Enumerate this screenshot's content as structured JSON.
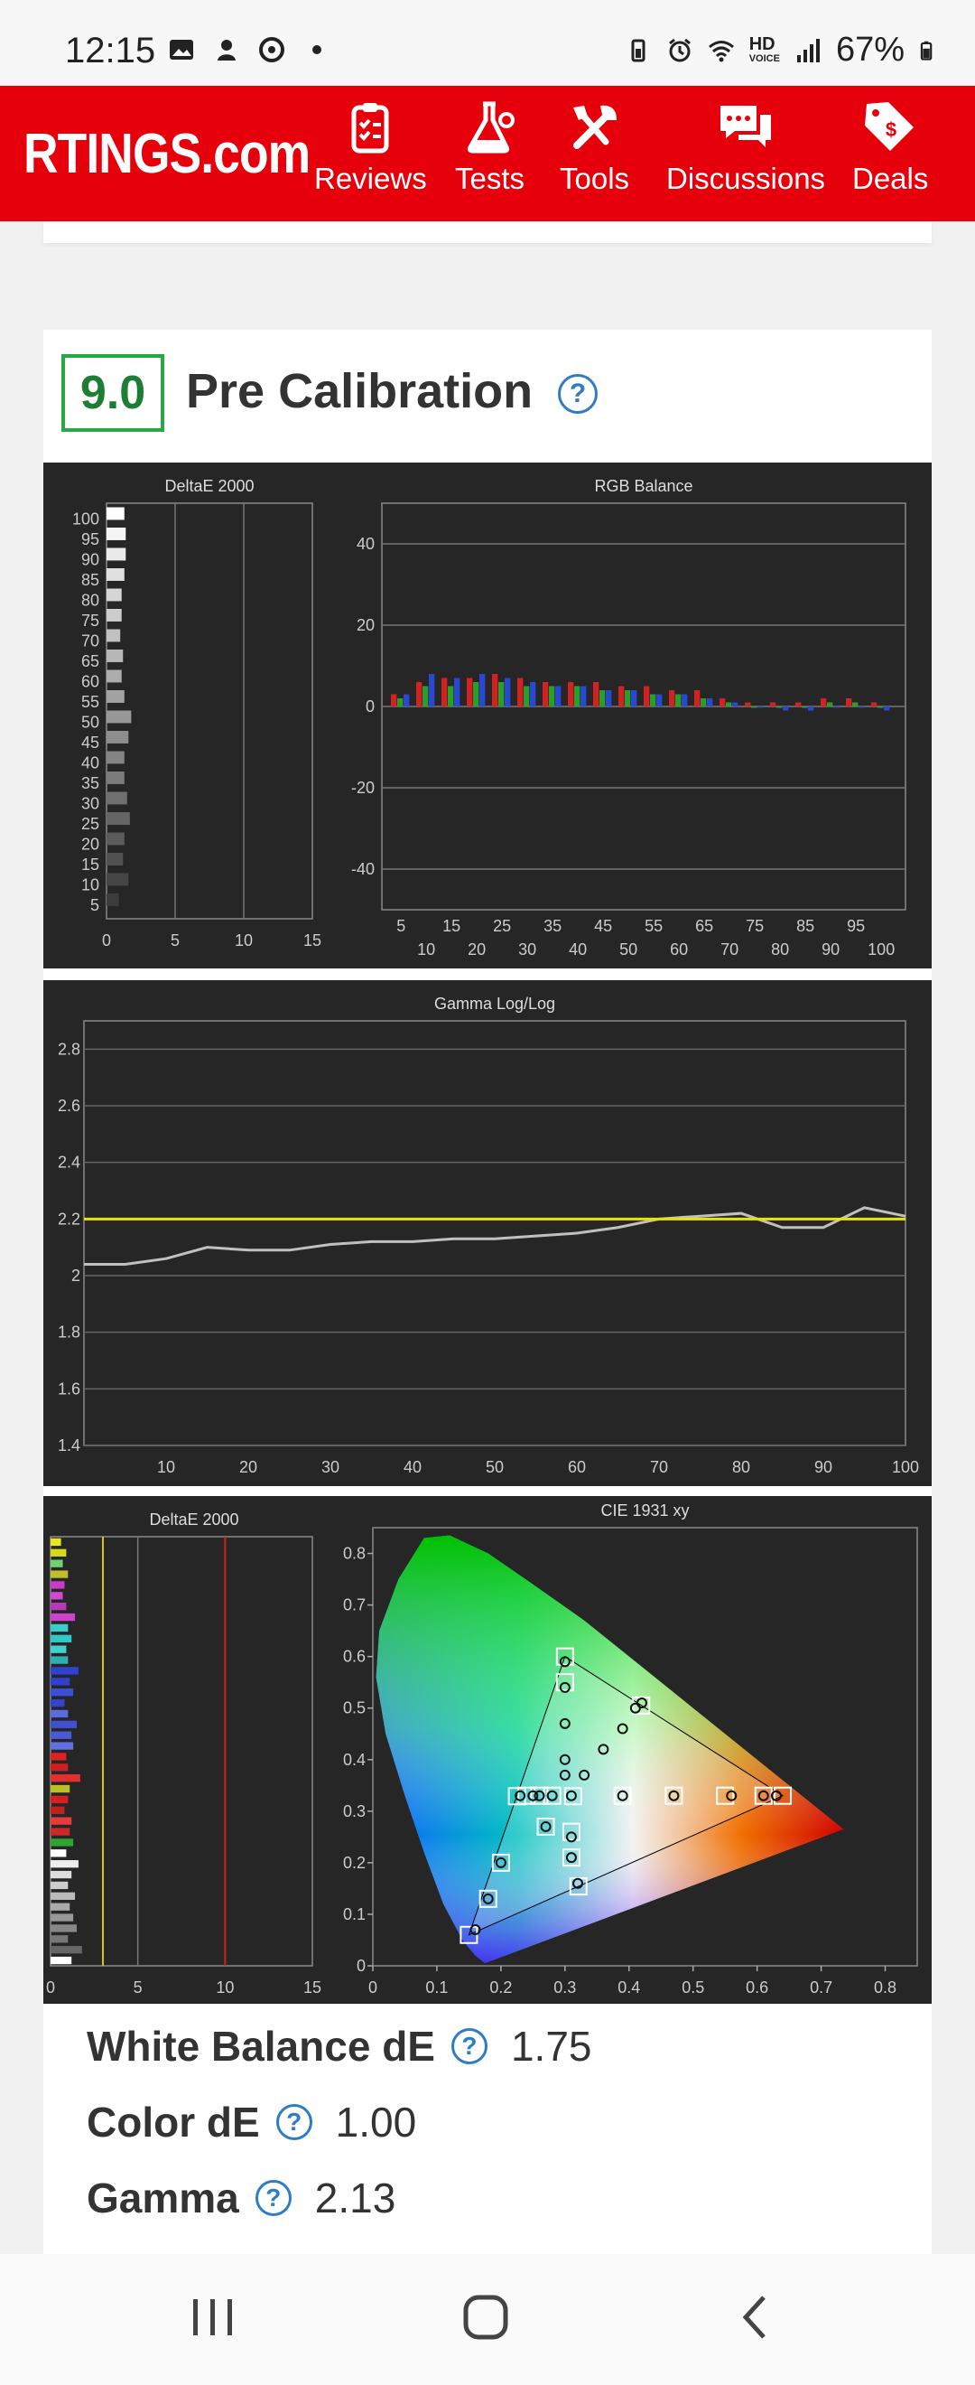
{
  "status_bar": {
    "time": "12:15",
    "battery": "67%",
    "hd_label": "HD",
    "voice_label": "VOICE"
  },
  "app": {
    "brand": "RTINGS.com",
    "accent": "#e5000b"
  },
  "nav": [
    {
      "label": "Reviews",
      "icon": "clipboard-icon"
    },
    {
      "label": "Tests",
      "icon": "flask-icon"
    },
    {
      "label": "Tools",
      "icon": "tools-icon"
    },
    {
      "label": "Discussions",
      "icon": "chat-icon"
    },
    {
      "label": "Deals",
      "icon": "tag-icon"
    }
  ],
  "section": {
    "score": "9.0",
    "title": "Pre Calibration",
    "help_glyph": "?"
  },
  "stats": [
    {
      "label": "White Balance dE",
      "value": "1.75"
    },
    {
      "label": "Color dE",
      "value": "1.00"
    },
    {
      "label": "Gamma",
      "value": "2.13"
    }
  ],
  "chart_data": [
    {
      "type": "bar",
      "title": "DeltaE 2000",
      "orientation": "horizontal",
      "categories": [
        5,
        10,
        15,
        20,
        25,
        30,
        35,
        40,
        45,
        50,
        55,
        60,
        65,
        70,
        75,
        80,
        85,
        90,
        95,
        100
      ],
      "values": [
        0.9,
        1.6,
        1.2,
        1.3,
        1.7,
        1.5,
        1.3,
        1.3,
        1.6,
        1.8,
        1.3,
        1.1,
        1.2,
        1.0,
        1.1,
        1.1,
        1.3,
        1.4,
        1.4,
        1.3
      ],
      "xlim": [
        0,
        15
      ],
      "xticks": [
        0,
        5,
        10,
        15
      ],
      "yticks": [
        5,
        10,
        15,
        20,
        25,
        30,
        35,
        40,
        45,
        50,
        55,
        60,
        65,
        70,
        75,
        80,
        85,
        90,
        95,
        100
      ]
    },
    {
      "type": "bar",
      "title": "RGB Balance",
      "categories": [
        5,
        10,
        15,
        20,
        25,
        30,
        35,
        40,
        45,
        50,
        55,
        60,
        65,
        70,
        75,
        80,
        85,
        90,
        95,
        100
      ],
      "series": [
        {
          "color": "#d42121",
          "values": [
            3,
            6,
            7,
            7,
            8,
            7,
            6,
            6,
            6,
            5,
            5,
            4,
            4,
            2,
            1,
            1,
            1,
            2,
            2,
            1
          ]
        },
        {
          "color": "#2aa02a",
          "values": [
            2,
            5,
            5,
            6,
            6,
            5,
            5,
            5,
            4,
            4,
            3,
            3,
            2,
            1,
            0,
            0,
            0,
            1,
            1,
            0
          ]
        },
        {
          "color": "#2a48d4",
          "values": [
            3,
            8,
            7,
            8,
            7,
            6,
            5,
            5,
            4,
            4,
            3,
            3,
            2,
            1,
            0,
            -1,
            -1,
            0,
            0,
            -1
          ]
        }
      ],
      "ylim": [
        -50,
        50
      ],
      "yticks": [
        -40,
        -20,
        0,
        20,
        40
      ],
      "xticks_top": [
        5,
        15,
        25,
        35,
        45,
        55,
        65,
        75,
        85,
        95
      ],
      "xticks_bottom": [
        10,
        20,
        30,
        40,
        50,
        60,
        70,
        80,
        90,
        100
      ]
    },
    {
      "type": "line",
      "title": "Gamma Log/Log",
      "x": [
        5,
        10,
        15,
        20,
        25,
        30,
        35,
        40,
        45,
        50,
        55,
        60,
        65,
        70,
        75,
        80,
        85,
        90,
        95,
        100
      ],
      "series": [
        {
          "name": "measured",
          "color": "#c0c0c0",
          "values": [
            2.04,
            2.06,
            2.1,
            2.09,
            2.09,
            2.11,
            2.12,
            2.12,
            2.13,
            2.13,
            2.14,
            2.15,
            2.17,
            2.2,
            2.21,
            2.22,
            2.17,
            2.17,
            2.24,
            2.21
          ]
        },
        {
          "name": "target",
          "color": "#e6e600",
          "values": [
            2.2,
            2.2,
            2.2,
            2.2,
            2.2,
            2.2,
            2.2,
            2.2,
            2.2,
            2.2,
            2.2,
            2.2,
            2.2,
            2.2,
            2.2,
            2.2,
            2.2,
            2.2,
            2.2,
            2.2
          ]
        }
      ],
      "ylim": [
        1.4,
        2.9
      ],
      "yticks": [
        1.4,
        1.6,
        1.8,
        2,
        2.2,
        2.4,
        2.6,
        2.8
      ],
      "xticks": [
        10,
        20,
        30,
        40,
        50,
        60,
        70,
        80,
        90,
        100
      ]
    },
    {
      "type": "bar",
      "title": "DeltaE 2000",
      "orientation": "horizontal",
      "values": [
        0.6,
        0.9,
        0.7,
        1.0,
        0.8,
        0.7,
        0.9,
        1.4,
        1.0,
        1.2,
        0.9,
        1.0,
        1.6,
        1.1,
        1.3,
        0.8,
        1.0,
        1.5,
        1.2,
        1.3,
        0.9,
        1.0,
        1.7,
        1.1,
        1.0,
        0.8,
        1.2,
        1.1,
        1.3,
        0.9,
        1.6,
        1.2,
        1.0,
        1.4,
        1.1,
        1.3,
        1.5,
        1.0,
        1.8,
        1.2
      ],
      "colors": [
        "#e6e61e",
        "#d8d81a",
        "#6fd16f",
        "#bfbf2a",
        "#c83cc8",
        "#d04ad0",
        "#b83ab8",
        "#cc44cc",
        "#3ccccc",
        "#32c8c8",
        "#40d0d0",
        "#2fb0b0",
        "#2e44d0",
        "#2f3fd0",
        "#3a50d8",
        "#3344cc",
        "#5a6ae0",
        "#4050d0",
        "#4a5ad6",
        "#6070e0",
        "#dd2222",
        "#cc2020",
        "#e03030",
        "#bfbf2a",
        "#d42020",
        "#c02020",
        "#e83a3a",
        "#cc2828",
        "#2fa52f",
        "#ffffff",
        "#eeeeee",
        "#dddddd",
        "#cccccc",
        "#bbbbbb",
        "#aaaaaa",
        "#999999",
        "#888888",
        "#777777",
        "#666666",
        "#ffffff"
      ],
      "xlim": [
        0,
        15
      ],
      "xticks": [
        0,
        5,
        10,
        15
      ],
      "reference_lines": [
        3,
        10
      ]
    },
    {
      "type": "scatter",
      "title": "CIE 1931 xy",
      "xlim": [
        0,
        0.85
      ],
      "ylim": [
        0,
        0.85
      ],
      "xticks": [
        0,
        0.1,
        0.2,
        0.3,
        0.4,
        0.5,
        0.6,
        0.7,
        0.8
      ],
      "yticks": [
        0,
        0.1,
        0.2,
        0.3,
        0.4,
        0.5,
        0.6,
        0.7,
        0.8
      ],
      "targets": [
        [
          0.64,
          0.33
        ],
        [
          0.3,
          0.6
        ],
        [
          0.15,
          0.06
        ],
        [
          0.3127,
          0.329
        ],
        [
          0.419,
          0.505
        ],
        [
          0.225,
          0.329
        ],
        [
          0.321,
          0.154
        ],
        [
          0.55,
          0.33
        ],
        [
          0.47,
          0.33
        ],
        [
          0.39,
          0.33
        ],
        [
          0.3,
          0.55
        ],
        [
          0.2,
          0.2
        ],
        [
          0.18,
          0.13
        ],
        [
          0.31,
          0.21
        ],
        [
          0.31,
          0.26
        ],
        [
          0.28,
          0.33
        ],
        [
          0.26,
          0.33
        ],
        [
          0.24,
          0.33
        ],
        [
          0.27,
          0.27
        ],
        [
          0.61,
          0.33
        ]
      ],
      "measured": [
        [
          0.63,
          0.33
        ],
        [
          0.3,
          0.59
        ],
        [
          0.16,
          0.07
        ],
        [
          0.31,
          0.33
        ],
        [
          0.41,
          0.5
        ],
        [
          0.23,
          0.33
        ],
        [
          0.32,
          0.16
        ],
        [
          0.56,
          0.33
        ],
        [
          0.47,
          0.33
        ],
        [
          0.39,
          0.33
        ],
        [
          0.3,
          0.54
        ],
        [
          0.2,
          0.2
        ],
        [
          0.18,
          0.13
        ],
        [
          0.31,
          0.21
        ],
        [
          0.31,
          0.25
        ],
        [
          0.28,
          0.33
        ],
        [
          0.26,
          0.33
        ],
        [
          0.25,
          0.33
        ],
        [
          0.27,
          0.27
        ],
        [
          0.61,
          0.33
        ],
        [
          0.3,
          0.47
        ],
        [
          0.3,
          0.4
        ],
        [
          0.33,
          0.37
        ],
        [
          0.36,
          0.42
        ],
        [
          0.39,
          0.46
        ],
        [
          0.42,
          0.51
        ],
        [
          0.3,
          0.37
        ]
      ],
      "gamut_primaries": [
        [
          0.64,
          0.33
        ],
        [
          0.3,
          0.6
        ],
        [
          0.15,
          0.06
        ]
      ]
    }
  ]
}
